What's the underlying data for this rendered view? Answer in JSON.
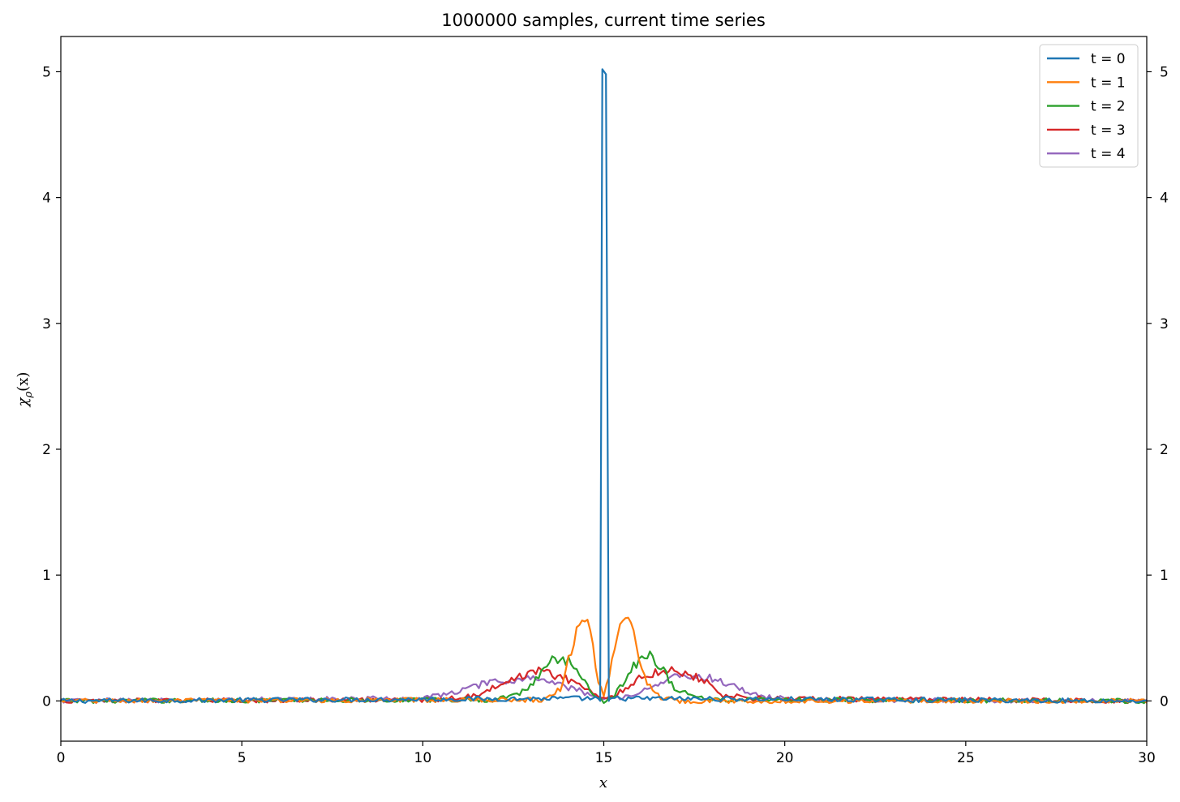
{
  "chart_data": {
    "type": "line",
    "title": "1000000 samples, current time series",
    "xlabel": "x",
    "ylabel_base": "χ",
    "ylabel_sub": "ρ",
    "ylabel_tail": "(x)",
    "xlim": [
      0,
      30
    ],
    "ylim": [
      -0.32,
      5.28
    ],
    "xticks": [
      0,
      5,
      10,
      15,
      20,
      25,
      30
    ],
    "yticks": [
      0,
      1,
      2,
      3,
      4,
      5
    ],
    "right_yticks": [
      0,
      1,
      2,
      3,
      4,
      5
    ],
    "grid": false,
    "legend_position": "top-right",
    "noise_amplitude": 0.03,
    "series": [
      {
        "name": "t = 0",
        "color": "#1f77b4",
        "peaks": [
          {
            "x": 14.9,
            "y": 0
          },
          {
            "x": 14.96,
            "y": 5.02
          },
          {
            "x": 15.06,
            "y": 4.98
          },
          {
            "x": 15.14,
            "y": 0
          }
        ],
        "profile": [
          [
            0,
            0
          ],
          [
            14.85,
            0.02
          ],
          [
            14.9,
            0
          ],
          [
            14.96,
            5.02
          ],
          [
            15.06,
            4.98
          ],
          [
            15.14,
            0
          ],
          [
            15.2,
            0.02
          ],
          [
            30,
            0
          ]
        ]
      },
      {
        "name": "t = 1",
        "color": "#ff7f0e",
        "profile": [
          [
            0,
            0
          ],
          [
            13.4,
            0.01
          ],
          [
            13.8,
            0.1
          ],
          [
            14.1,
            0.4
          ],
          [
            14.35,
            0.66
          ],
          [
            14.5,
            0.67
          ],
          [
            14.7,
            0.45
          ],
          [
            14.85,
            0.15
          ],
          [
            15.0,
            0.04
          ],
          [
            15.15,
            0.18
          ],
          [
            15.35,
            0.5
          ],
          [
            15.55,
            0.69
          ],
          [
            15.7,
            0.69
          ],
          [
            15.85,
            0.5
          ],
          [
            16.1,
            0.2
          ],
          [
            16.5,
            0.04
          ],
          [
            17.0,
            0.0
          ],
          [
            30,
            0
          ]
        ]
      },
      {
        "name": "t = 2",
        "color": "#2ca02c",
        "profile": [
          [
            0,
            0
          ],
          [
            12.0,
            0.01
          ],
          [
            12.8,
            0.08
          ],
          [
            13.2,
            0.18
          ],
          [
            13.5,
            0.32
          ],
          [
            13.8,
            0.34
          ],
          [
            14.1,
            0.3
          ],
          [
            14.4,
            0.18
          ],
          [
            14.7,
            0.05
          ],
          [
            15.0,
            0.0
          ],
          [
            15.3,
            0.05
          ],
          [
            15.6,
            0.17
          ],
          [
            15.85,
            0.28
          ],
          [
            16.1,
            0.38
          ],
          [
            16.3,
            0.36
          ],
          [
            16.6,
            0.27
          ],
          [
            16.9,
            0.12
          ],
          [
            17.4,
            0.04
          ],
          [
            18.0,
            0.01
          ],
          [
            30,
            0
          ]
        ]
      },
      {
        "name": "t = 3",
        "color": "#d62728",
        "profile": [
          [
            0,
            0
          ],
          [
            10.5,
            0.01
          ],
          [
            11.5,
            0.05
          ],
          [
            12.4,
            0.15
          ],
          [
            13.0,
            0.25
          ],
          [
            13.4,
            0.22
          ],
          [
            13.8,
            0.2
          ],
          [
            14.2,
            0.15
          ],
          [
            14.6,
            0.07
          ],
          [
            15.0,
            0.02
          ],
          [
            15.4,
            0.06
          ],
          [
            15.8,
            0.15
          ],
          [
            16.3,
            0.22
          ],
          [
            16.9,
            0.25
          ],
          [
            17.3,
            0.22
          ],
          [
            17.8,
            0.16
          ],
          [
            18.2,
            0.05
          ],
          [
            19.0,
            0.02
          ],
          [
            30,
            0
          ]
        ]
      },
      {
        "name": "t = 4",
        "color": "#9467bd",
        "profile": [
          [
            0,
            0
          ],
          [
            10.0,
            0.02
          ],
          [
            11.0,
            0.08
          ],
          [
            11.8,
            0.14
          ],
          [
            12.5,
            0.16
          ],
          [
            13.0,
            0.19
          ],
          [
            13.5,
            0.15
          ],
          [
            14.2,
            0.09
          ],
          [
            14.8,
            0.03
          ],
          [
            15.2,
            0.02
          ],
          [
            15.8,
            0.05
          ],
          [
            16.4,
            0.12
          ],
          [
            17.0,
            0.2
          ],
          [
            17.6,
            0.2
          ],
          [
            18.2,
            0.16
          ],
          [
            18.8,
            0.09
          ],
          [
            19.5,
            0.03
          ],
          [
            20.5,
            0.01
          ],
          [
            30,
            0
          ]
        ]
      }
    ]
  }
}
